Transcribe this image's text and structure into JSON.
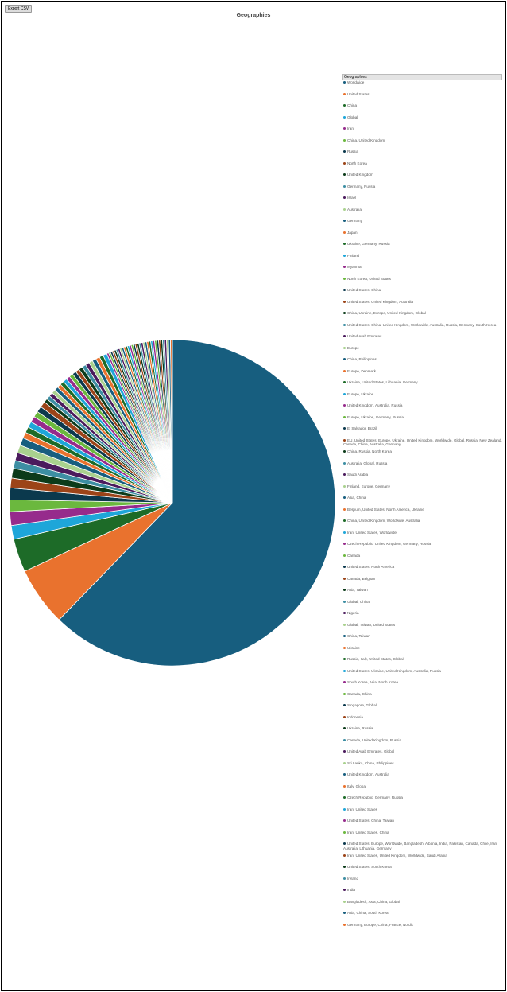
{
  "toolbar": {
    "button": "Export CSV"
  },
  "chart_data": {
    "type": "pie",
    "title": "Geographies",
    "legend_title": "Geographies",
    "categories": [
      "Worldwide",
      "United States",
      "China",
      "Global",
      "Iran",
      "China, United Kingdom",
      "Russia",
      "North Korea",
      "United Kingdom",
      "Germany, Russia",
      "Israel",
      "Australia",
      "Germany",
      "Japan",
      "Ukraine, Germany, Russia",
      "Finland",
      "Myanmar",
      "North Korea, United States",
      "United States, China",
      "United States, United Kingdom, Australia",
      "China, Ukraine, Europe, United Kingdom, Global",
      "United States, China, United Kingdom, Worldwide, Australia, Russia, Germany, South Korea",
      "United Arab Emirates",
      "Europe",
      "China, Philippines",
      "Europe, Denmark",
      "Ukraine, United States, Lithuania, Germany",
      "Europe, Ukraine",
      "United Kingdom, Australia, Russia",
      "Europe, Ukraine, Germany, Russia",
      "El Salvador, Brazil",
      "EU, United States, Europe, Ukraine, United Kingdom, Worldwide, Global, Russia, New Zealand, Canada, China, Australia, Germany",
      "China, Russia, North Korea",
      "Australia, Global, Russia",
      "Saudi Arabia",
      "Finland, Europe, Germany",
      "Asia, China",
      "Belgium, United States, North America, Ukraine",
      "China, United Kingdom, Worldwide, Australia",
      "Iran, United States, Worldwide",
      "Czech Republic, United Kingdom, Germany, Russia",
      "Canada",
      "United States, North America",
      "Canada, Belgium",
      "Asia, Taiwan",
      "Global, China",
      "Nigeria",
      "Global, Taiwan, United States",
      "China, Taiwan",
      "Ukraine",
      "Russia, Italy, United States, Global",
      "United States, Ukraine, United Kingdom, Australia, Russia",
      "South Korea, Asia, North Korea",
      "Canada, China",
      "Singapore, Global",
      "Indonesia",
      "Ukraine, Russia",
      "Canada, United Kingdom, Russia",
      "United Arab Emirates, Global",
      "Sri Lanka, China, Philippines",
      "United Kingdom, Australia",
      "Italy, Global",
      "Czech Republic, Germany, Russia",
      "Iran, United States",
      "United States, China, Taiwan",
      "Iran, United States, China",
      "United States, Europe, Worldwide, Bangladesh, Albania, India, Pakistan, Canada, Chile, Iran, Australia, Lithuania, Germany",
      "Iran, United States, United Kingdom, Worldwide, Saudi Arabia",
      "United States, South Korea",
      "Ireland",
      "India",
      "Bangladesh, Asia, China, Global",
      "Asia, China, South Korea",
      "Germany, Europe, China, France, Nordic"
    ],
    "values": [
      320,
      30,
      17,
      7,
      7,
      6,
      6,
      5,
      5,
      4,
      4,
      4,
      4,
      3,
      3,
      3,
      3,
      3,
      3,
      3,
      2,
      2,
      2,
      2,
      2,
      2,
      2,
      2,
      2,
      2,
      2,
      2,
      2,
      2,
      2,
      2,
      2,
      2,
      2,
      2,
      1,
      1,
      1,
      1,
      1,
      1,
      1,
      1,
      1,
      1,
      1,
      1,
      1,
      1,
      1,
      1,
      1,
      1,
      1,
      1,
      1,
      1,
      1,
      1,
      1,
      1,
      1,
      1,
      1,
      1,
      1,
      1,
      1,
      1
    ],
    "colors": [
      "#175e7f",
      "#e9722e",
      "#1d6b28",
      "#1ea6d9",
      "#962b8c",
      "#6bb83e",
      "#0b394d",
      "#9c4418",
      "#0c3b1a",
      "#3d8ea3",
      "#4b1b5d",
      "#a9d18e"
    ]
  }
}
